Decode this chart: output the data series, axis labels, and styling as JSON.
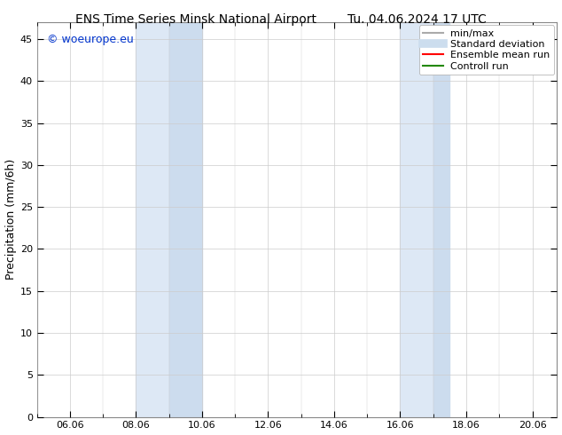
{
  "title_left": "ENS Time Series Minsk National Airport",
  "title_right": "Tu. 04.06.2024 17 UTC",
  "ylabel": "Precipitation (mm/6h)",
  "xlabel": "",
  "ylim": [
    0,
    47
  ],
  "yticks": [
    0,
    5,
    10,
    15,
    20,
    25,
    30,
    35,
    40,
    45
  ],
  "xtick_labels": [
    "06.06",
    "08.06",
    "10.06",
    "12.06",
    "14.06",
    "16.06",
    "18.06",
    "20.06"
  ],
  "xtick_positions": [
    1,
    3,
    5,
    7,
    9,
    11,
    13,
    15
  ],
  "xlim": [
    0,
    15.75
  ],
  "band1_light": [
    3.0,
    4.0
  ],
  "band1_dark": [
    4.0,
    5.0
  ],
  "band2_light": [
    11.0,
    12.0
  ],
  "band2_dark": [
    12.0,
    12.5
  ],
  "color_band_light": "#dde8f5",
  "color_band_dark": "#ccdcee",
  "background_color": "#ffffff",
  "plot_bg_color": "#ffffff",
  "watermark_text": "© woeurope.eu",
  "watermark_color": "#0033cc",
  "legend_items": [
    {
      "label": "min/max",
      "color": "#aaaaaa",
      "lw": 1.5
    },
    {
      "label": "Standard deviation",
      "color": "#ccddee",
      "lw": 7
    },
    {
      "label": "Ensemble mean run",
      "color": "#ff0000",
      "lw": 1.5
    },
    {
      "label": "Controll run",
      "color": "#228800",
      "lw": 1.5
    }
  ],
  "title_fontsize": 10,
  "ylabel_fontsize": 9,
  "tick_fontsize": 8,
  "legend_fontsize": 8,
  "watermark_fontsize": 9
}
